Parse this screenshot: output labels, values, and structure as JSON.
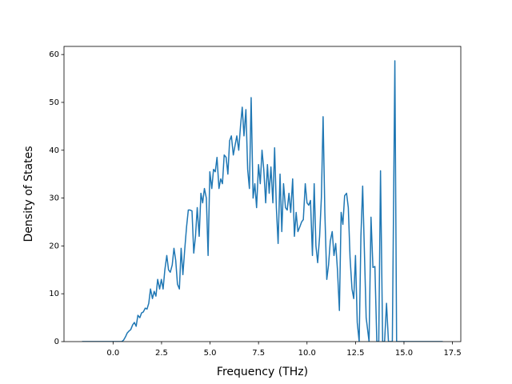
{
  "chart_data": {
    "type": "line",
    "xlabel": "Frequency (THz)",
    "ylabel": "Density of States",
    "xlim": [
      -2.53,
      17.93
    ],
    "ylim": [
      0,
      61.7
    ],
    "xticks": [
      {
        "value": 0,
        "label": "0.0"
      },
      {
        "value": 2.5,
        "label": "2.5"
      },
      {
        "value": 5,
        "label": "5.0"
      },
      {
        "value": 7.5,
        "label": "7.5"
      },
      {
        "value": 10,
        "label": "10.0"
      },
      {
        "value": 12.5,
        "label": "12.5"
      },
      {
        "value": 15,
        "label": "15.0"
      },
      {
        "value": 17.5,
        "label": "17.5"
      }
    ],
    "yticks": [
      0,
      10,
      20,
      30,
      40,
      50,
      60
    ],
    "grid": false,
    "series": [
      {
        "color": "#1f77b4",
        "x": [
          -1.6,
          0.45,
          0.54,
          0.64,
          0.73,
          0.82,
          0.91,
          1.01,
          1.1,
          1.19,
          1.28,
          1.38,
          1.47,
          1.56,
          1.66,
          1.75,
          1.84,
          1.93,
          2.03,
          2.12,
          2.21,
          2.3,
          2.4,
          2.49,
          2.58,
          2.67,
          2.77,
          2.86,
          2.95,
          3.05,
          3.14,
          3.23,
          3.32,
          3.42,
          3.51,
          3.6,
          3.69,
          3.79,
          3.88,
          3.97,
          4.07,
          4.16,
          4.25,
          4.34,
          4.44,
          4.53,
          4.62,
          4.71,
          4.81,
          4.9,
          4.99,
          5.09,
          5.18,
          5.27,
          5.36,
          5.46,
          5.55,
          5.64,
          5.73,
          5.83,
          5.92,
          6.01,
          6.1,
          6.2,
          6.29,
          6.38,
          6.48,
          6.57,
          6.66,
          6.75,
          6.85,
          6.94,
          7.03,
          7.12,
          7.22,
          7.31,
          7.4,
          7.5,
          7.59,
          7.68,
          7.77,
          7.87,
          7.96,
          8.05,
          8.14,
          8.24,
          8.33,
          8.42,
          8.51,
          8.61,
          8.7,
          8.79,
          8.89,
          8.98,
          9.07,
          9.16,
          9.26,
          9.35,
          9.44,
          9.53,
          9.63,
          9.72,
          9.81,
          9.91,
          10.0,
          10.09,
          10.18,
          10.28,
          10.37,
          10.46,
          10.55,
          10.65,
          10.74,
          10.83,
          10.92,
          11.02,
          11.11,
          11.2,
          11.3,
          11.39,
          11.48,
          11.57,
          11.67,
          11.76,
          11.85,
          11.94,
          12.04,
          12.13,
          12.22,
          12.32,
          12.41,
          12.5,
          12.59,
          12.69,
          12.78,
          12.87,
          13.05,
          13.2,
          13.3,
          13.4,
          13.5,
          13.6,
          13.7,
          13.79,
          13.9,
          14.0,
          14.1,
          14.2,
          14.4,
          14.53,
          14.62,
          17.0
        ],
        "values": [
          0,
          0,
          0.3,
          1,
          1.8,
          2.2,
          2.5,
          3.5,
          4,
          3.2,
          5.5,
          5,
          6,
          6.2,
          7,
          6.8,
          8,
          11,
          9,
          10.5,
          9.5,
          13,
          11,
          13,
          11,
          15,
          18,
          15,
          14.5,
          16,
          19.5,
          17,
          12,
          11,
          19.5,
          14,
          19,
          24,
          27.5,
          27.5,
          27.3,
          18.5,
          22,
          28,
          22,
          31,
          29,
          32,
          30,
          18,
          35.5,
          32,
          36,
          35.5,
          38.5,
          32,
          34,
          33,
          39,
          38.5,
          35,
          42,
          43,
          39,
          41,
          43,
          40,
          45,
          49,
          43,
          48.5,
          36,
          32,
          51,
          30,
          33,
          28,
          37,
          33,
          40,
          36,
          29,
          37,
          31,
          36.5,
          29,
          40.5,
          28,
          20.5,
          35,
          23,
          33,
          28,
          27.5,
          31,
          27,
          34,
          22,
          27,
          23,
          24,
          25,
          25.5,
          33,
          29,
          28.5,
          29.5,
          18,
          33,
          20,
          16.5,
          22,
          30,
          47,
          27,
          13,
          16,
          21,
          23,
          18,
          20.5,
          15,
          6.5,
          27,
          24.5,
          30.5,
          31,
          28,
          17.5,
          11,
          9,
          18,
          4,
          0,
          22,
          32.5,
          5,
          0,
          26,
          15.5,
          15.7,
          0,
          0,
          35.7,
          0,
          0,
          8,
          0,
          0,
          58.7,
          0,
          0
        ]
      }
    ]
  }
}
